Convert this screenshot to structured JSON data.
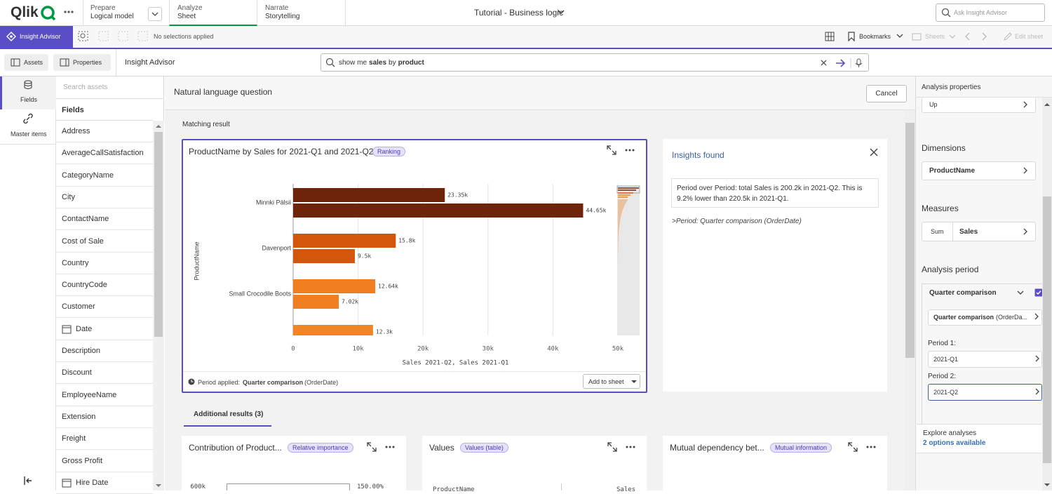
{
  "top_bar": {
    "logo": "Qlik",
    "tabs": [
      {
        "small": "Prepare",
        "label": "Logical model"
      },
      {
        "small": "Analyze",
        "label": "Sheet"
      },
      {
        "small": "Narrate",
        "label": "Storytelling"
      }
    ],
    "app_title": "Tutorial - Business logic",
    "search_placeholder": "Ask Insight Advisor"
  },
  "toolbar": {
    "insight_advisor": "Insight Advisor",
    "selections": "No selections applied",
    "bookmarks": "Bookmarks",
    "sheets": "Sheets",
    "edit_sheet": "Edit sheet"
  },
  "subbar": {
    "assets": "Assets",
    "properties": "Properties",
    "title": "Insight Advisor",
    "query": [
      "show me",
      "sales",
      "by",
      "product"
    ]
  },
  "left_nav": [
    "Fields",
    "Master items"
  ],
  "assets": {
    "search_placeholder": "Search assets",
    "heading": "Fields",
    "fields": [
      "Address",
      "AverageCallSatisfaction",
      "CategoryName",
      "City",
      "ContactName",
      "Cost of Sale",
      "Country",
      "CountryCode",
      "Customer",
      "Date",
      "Description",
      "Discount",
      "EmployeeName",
      "Extension",
      "Freight",
      "Gross Profit",
      "Hire Date"
    ]
  },
  "main": {
    "heading": "Natural language question",
    "cancel": "Cancel",
    "matching": "Matching result",
    "badge": "Ranking",
    "period_applied_label": "Period applied:",
    "period_applied_value": "Quarter comparison",
    "period_applied_suffix": "(OrderDate)",
    "add_to_sheet": "Add to sheet"
  },
  "insights": {
    "title": "Insights found",
    "text": "Period over Period: total Sales is 200.2k in 2021-Q2. This is 9.2% lower than 220.5k in 2021-Q1.",
    "note": ">Period: Quarter comparison (OrderDate)"
  },
  "additional": {
    "tab": "Additional results (3)",
    "cards": [
      {
        "title": "Contribution of Product...",
        "badge": "Relative importance",
        "texts": [
          "600k",
          "150.00%"
        ]
      },
      {
        "title": "Values",
        "badge": "Values (table)",
        "texts": [
          "ProductName",
          "Sales"
        ]
      },
      {
        "title": "Mutual dependency bet...",
        "badge": "Mutual information",
        "texts": []
      }
    ]
  },
  "properties": {
    "title": "Analysis properties",
    "up": "Up",
    "dimensions": "Dimensions",
    "dimension": "ProductName",
    "measures": "Measures",
    "aggregation": "Sum",
    "measure": "Sales",
    "analysis_period": "Analysis period",
    "period_type": "Quarter comparison",
    "period_field_bold": "Quarter comparison",
    "period_field_rest": "(OrderDa...",
    "period1_label": "Period 1:",
    "period1": "2021-Q1",
    "period2_label": "Period 2:",
    "period2": "2021-Q2",
    "explore": "Explore analyses",
    "explore_link": "2 options available"
  },
  "chart_data": {
    "type": "bar",
    "orientation": "horizontal",
    "title": "ProductName by Sales for 2021-Q1 and 2021-Q2",
    "x_label": "Sales 2021-Q2, Sales 2021-Q1",
    "y_label": "ProductName",
    "categories": [
      "Minnki Pälsii",
      "Davenport",
      "Small Crocodile Boots",
      null
    ],
    "colors": [
      "#6e240a",
      "#d4560c",
      "#ef7f21",
      "#f08526"
    ],
    "series": [
      {
        "values": [
          23350,
          15800,
          12640,
          12300
        ],
        "value_labels": [
          "23.35k",
          "15.8k",
          "12.64k",
          "12.3k"
        ]
      },
      {
        "values": [
          44650,
          9500,
          7020,
          null
        ],
        "value_labels": [
          "44.65k",
          "9.5k",
          "7.02k",
          null
        ]
      }
    ],
    "xlim": [
      0,
      50000
    ],
    "xticks": [
      0,
      {
        "value": 10000,
        "label": "10k"
      },
      {
        "value": 20000,
        "label": "20k"
      },
      {
        "value": 30000,
        "label": "30k"
      },
      {
        "value": 40000,
        "label": "40k"
      },
      {
        "value": 50000,
        "label": "50k"
      }
    ],
    "grid": true
  }
}
